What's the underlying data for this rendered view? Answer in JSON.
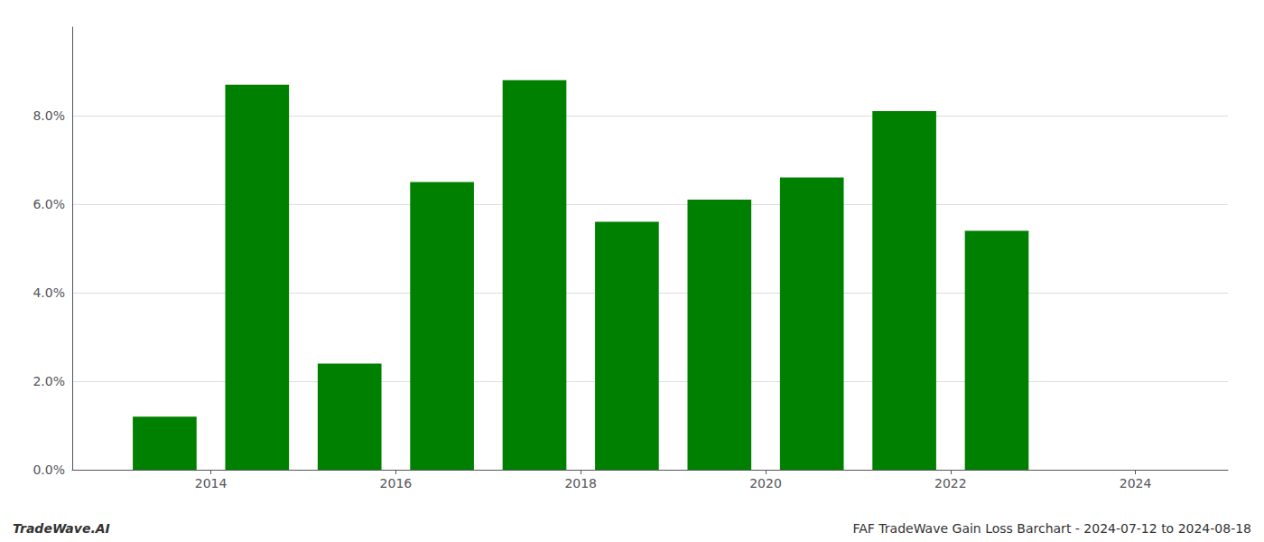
{
  "chart_data": {
    "type": "bar",
    "x": [
      2013.5,
      2014.5,
      2015.5,
      2016.5,
      2017.5,
      2018.5,
      2019.5,
      2020.5,
      2021.5,
      2022.5
    ],
    "values": [
      0.012,
      0.087,
      0.024,
      0.065,
      0.088,
      0.056,
      0.061,
      0.066,
      0.081,
      0.054
    ],
    "color": "#008000",
    "xlim": [
      2012.5,
      2025.0
    ],
    "xticks": [
      2014,
      2016,
      2018,
      2020,
      2022,
      2024
    ],
    "ylim": [
      0,
      0.1
    ],
    "yticks": [
      {
        "value": 0.0,
        "label": "0.0%"
      },
      {
        "value": 0.02,
        "label": "2.0%"
      },
      {
        "value": 0.04,
        "label": "4.0%"
      },
      {
        "value": 0.06,
        "label": "6.0%"
      },
      {
        "value": 0.08,
        "label": "8.0%"
      }
    ],
    "grid": true,
    "annotations": [
      "TradeWave.AI",
      "FAF TradeWave Gain Loss Barchart - 2024-07-12 to 2024-08-18"
    ]
  }
}
